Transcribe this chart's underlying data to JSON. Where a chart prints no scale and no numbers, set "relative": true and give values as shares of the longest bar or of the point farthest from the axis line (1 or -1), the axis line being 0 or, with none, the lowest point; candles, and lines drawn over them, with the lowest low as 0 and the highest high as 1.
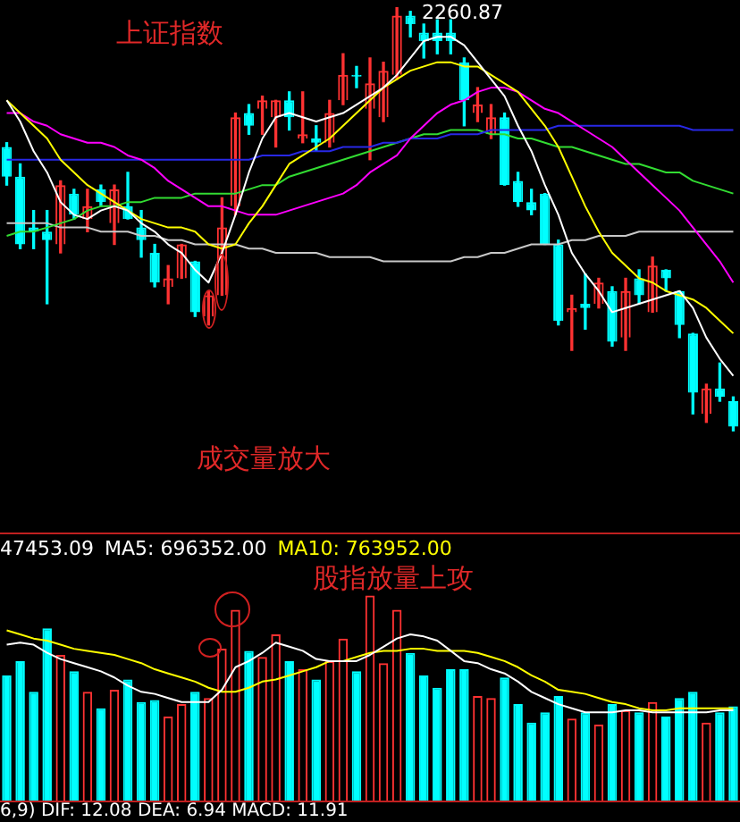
{
  "chart_data": [
    {
      "type": "candlestick",
      "relative": true,
      "categories": [
        null,
        null,
        null,
        null,
        null,
        null,
        null,
        null,
        null,
        null,
        null,
        null,
        null,
        null,
        null,
        null,
        null,
        null,
        null,
        null,
        null,
        null,
        null,
        null,
        null,
        null,
        null,
        null,
        null,
        null,
        null,
        null,
        null,
        null,
        null,
        null,
        null,
        null,
        null,
        null,
        null,
        null,
        null,
        null,
        null,
        null,
        null,
        null,
        null,
        null,
        null,
        null,
        null,
        null,
        null
      ],
      "ohlc": [
        [
          0.67,
          0.68,
          0.58,
          0.6
        ],
        [
          0.6,
          0.63,
          0.43,
          0.44
        ],
        [
          0.48,
          0.52,
          0.43,
          0.47
        ],
        [
          0.47,
          0.52,
          0.3,
          0.45
        ],
        [
          0.44,
          0.59,
          0.42,
          0.58
        ],
        [
          0.56,
          0.57,
          0.5,
          0.51
        ],
        [
          0.5,
          0.57,
          0.47,
          0.53
        ],
        [
          0.57,
          0.58,
          0.53,
          0.54
        ],
        [
          0.49,
          0.58,
          0.44,
          0.57
        ],
        [
          0.53,
          0.61,
          0.5,
          0.5
        ],
        [
          0.48,
          0.52,
          0.41,
          0.45
        ],
        [
          0.42,
          0.44,
          0.34,
          0.35
        ],
        [
          0.34,
          0.39,
          0.3,
          0.36
        ],
        [
          0.36,
          0.44,
          0.36,
          0.44
        ],
        [
          0.4,
          0.4,
          0.27,
          0.28
        ],
        [
          0.27,
          0.33,
          0.25,
          0.32
        ],
        [
          0.32,
          0.55,
          0.32,
          0.48
        ],
        [
          0.53,
          0.75,
          0.51,
          0.74
        ],
        [
          0.75,
          0.77,
          0.7,
          0.72
        ],
        [
          0.76,
          0.79,
          0.7,
          0.78
        ],
        [
          0.74,
          0.78,
          0.67,
          0.78
        ],
        [
          0.78,
          0.8,
          0.71,
          0.74
        ],
        [
          0.69,
          0.8,
          0.68,
          0.7
        ],
        [
          0.69,
          0.72,
          0.66,
          0.68
        ],
        [
          0.68,
          0.78,
          0.67,
          0.75
        ],
        [
          0.78,
          0.89,
          0.77,
          0.84
        ],
        [
          0.84,
          0.86,
          0.81,
          0.84
        ],
        [
          0.76,
          0.88,
          0.64,
          0.82
        ],
        [
          0.74,
          0.87,
          0.73,
          0.85
        ],
        [
          0.84,
          1,
          0.83,
          0.98
        ],
        [
          0.98,
          0.99,
          0.93,
          0.96
        ],
        [
          0.94,
          0.96,
          0.88,
          0.92
        ],
        [
          0.94,
          0.97,
          0.89,
          0.92
        ],
        [
          0.94,
          0.97,
          0.89,
          0.92
        ],
        [
          0.87,
          0.88,
          0.72,
          0.78
        ],
        [
          0.75,
          0.81,
          0.73,
          0.77
        ],
        [
          0.7,
          0.77,
          0.69,
          0.74
        ],
        [
          0.74,
          0.75,
          0.58,
          0.58
        ],
        [
          0.59,
          0.61,
          0.53,
          0.54
        ],
        [
          0.54,
          0.57,
          0.51,
          0.52
        ],
        [
          0.56,
          0.56,
          0.44,
          0.44
        ],
        [
          0.44,
          0.45,
          0.25,
          0.26
        ],
        [
          0.28,
          0.32,
          0.19,
          0.29
        ],
        [
          0.3,
          0.37,
          0.24,
          0.29
        ],
        [
          0.3,
          0.36,
          0.29,
          0.35
        ],
        [
          0.33,
          0.34,
          0.2,
          0.21
        ],
        [
          0.22,
          0.36,
          0.19,
          0.33
        ],
        [
          0.36,
          0.38,
          0.3,
          0.32
        ],
        [
          0.28,
          0.41,
          0.28,
          0.39
        ],
        [
          0.38,
          0.38,
          0.33,
          0.36
        ],
        [
          0.33,
          0.33,
          0.22,
          0.25
        ],
        [
          0.23,
          0.23,
          0.04,
          0.09
        ],
        [
          0.04,
          0.11,
          0.02,
          0.1
        ],
        [
          0.1,
          0.16,
          0.07,
          0.08
        ],
        [
          0.07,
          0.08,
          0,
          0.01
        ]
      ],
      "colors": [
        "#00ffff",
        "#00ffff",
        "#00ffff",
        "#00ffff",
        "#ff3232",
        "#00ffff",
        "#ff3232",
        "#00ffff",
        "#ff3232",
        "#00ffff",
        "#00ffff",
        "#00ffff",
        "#ff3232",
        "#ff3232",
        "#00ffff",
        "#ff3232",
        "#ff3232",
        "#ff3232",
        "#00ffff",
        "#ff3232",
        "#ff3232",
        "#00ffff",
        "#ff3232",
        "#00ffff",
        "#ff3232",
        "#ff3232",
        "#00ffff",
        "#ff3232",
        "#ff3232",
        "#ff3232",
        "#00ffff",
        "#00ffff",
        "#00ffff",
        "#00ffff",
        "#00ffff",
        "#ff3232",
        "#ff3232",
        "#00ffff",
        "#00ffff",
        "#00ffff",
        "#00ffff",
        "#00ffff",
        "#ff3232",
        "#00ffff",
        "#ff3232",
        "#00ffff",
        "#ff3232",
        "#00ffff",
        "#ff3232",
        "#00ffff",
        "#00ffff",
        "#00ffff",
        "#ff3232",
        "#00ffff",
        "#00ffff"
      ],
      "series": [
        {
          "type": "line",
          "color": "#ffffff",
          "values": [
            0.78,
            0.73,
            0.66,
            0.61,
            0.54,
            0.51,
            0.5,
            0.52,
            0.53,
            0.52,
            0.49,
            0.47,
            0.44,
            0.42,
            0.38,
            0.35,
            0.42,
            0.51,
            0.61,
            0.69,
            0.74,
            0.75,
            0.74,
            0.73,
            0.74,
            0.75,
            0.77,
            0.79,
            0.81,
            0.84,
            0.88,
            0.92,
            0.93,
            0.93,
            0.91,
            0.87,
            0.83,
            0.79,
            0.72,
            0.66,
            0.58,
            0.51,
            0.42,
            0.37,
            0.33,
            0.28,
            0.29,
            0.3,
            0.31,
            0.32,
            0.33,
            0.29,
            0.22,
            0.17,
            0.13
          ]
        },
        {
          "type": "line",
          "color": "#ffff00",
          "values": [
            0.78,
            0.75,
            0.72,
            0.69,
            0.64,
            0.61,
            0.58,
            0.56,
            0.54,
            0.52,
            0.5,
            0.49,
            0.48,
            0.48,
            0.47,
            0.44,
            0.43,
            0.44,
            0.49,
            0.53,
            0.58,
            0.63,
            0.65,
            0.67,
            0.69,
            0.72,
            0.75,
            0.78,
            0.81,
            0.83,
            0.85,
            0.86,
            0.87,
            0.87,
            0.86,
            0.86,
            0.84,
            0.82,
            0.8,
            0.76,
            0.72,
            0.67,
            0.6,
            0.53,
            0.47,
            0.42,
            0.39,
            0.36,
            0.35,
            0.33,
            0.32,
            0.31,
            0.29,
            0.26,
            0.23
          ]
        },
        {
          "type": "line",
          "color": "#ff00ff",
          "values": [
            0.75,
            0.75,
            0.73,
            0.72,
            0.7,
            0.69,
            0.68,
            0.68,
            0.67,
            0.65,
            0.64,
            0.62,
            0.59,
            0.57,
            0.55,
            0.53,
            0.53,
            0.52,
            0.51,
            0.51,
            0.51,
            0.52,
            0.53,
            0.54,
            0.55,
            0.56,
            0.58,
            0.61,
            0.63,
            0.65,
            0.69,
            0.72,
            0.75,
            0.77,
            0.78,
            0.8,
            0.81,
            0.81,
            0.8,
            0.78,
            0.76,
            0.75,
            0.73,
            0.71,
            0.69,
            0.67,
            0.64,
            0.61,
            0.58,
            0.55,
            0.52,
            0.48,
            0.44,
            0.4,
            0.35
          ]
        },
        {
          "type": "line",
          "color": "#2828e6",
          "values": [
            0.64,
            0.64,
            0.64,
            0.64,
            0.64,
            0.64,
            0.64,
            0.64,
            0.64,
            0.64,
            0.64,
            0.64,
            0.64,
            0.64,
            0.64,
            0.64,
            0.64,
            0.64,
            0.64,
            0.65,
            0.65,
            0.65,
            0.66,
            0.66,
            0.66,
            0.67,
            0.67,
            0.67,
            0.68,
            0.68,
            0.69,
            0.69,
            0.69,
            0.7,
            0.7,
            0.7,
            0.71,
            0.71,
            0.71,
            0.71,
            0.71,
            0.72,
            0.72,
            0.72,
            0.72,
            0.72,
            0.72,
            0.72,
            0.72,
            0.72,
            0.72,
            0.71,
            0.71,
            0.71,
            0.71
          ]
        },
        {
          "type": "line",
          "color": "#32dc32",
          "values": [
            0.46,
            0.47,
            0.47,
            0.48,
            0.49,
            0.5,
            0.52,
            0.53,
            0.53,
            0.54,
            0.54,
            0.55,
            0.55,
            0.55,
            0.56,
            0.56,
            0.56,
            0.56,
            0.57,
            0.58,
            0.58,
            0.6,
            0.61,
            0.62,
            0.63,
            0.64,
            0.65,
            0.66,
            0.67,
            0.68,
            0.69,
            0.7,
            0.7,
            0.71,
            0.71,
            0.71,
            0.7,
            0.7,
            0.69,
            0.69,
            0.68,
            0.67,
            0.67,
            0.66,
            0.65,
            0.64,
            0.63,
            0.63,
            0.62,
            0.61,
            0.61,
            0.59,
            0.58,
            0.57,
            0.56
          ]
        },
        {
          "type": "line",
          "color": "#c8c8c8",
          "values": [
            0.49,
            0.49,
            0.49,
            0.49,
            0.48,
            0.48,
            0.48,
            0.47,
            0.47,
            0.47,
            0.46,
            0.46,
            0.45,
            0.45,
            0.44,
            0.44,
            0.44,
            0.44,
            0.43,
            0.43,
            0.42,
            0.42,
            0.42,
            0.42,
            0.41,
            0.41,
            0.41,
            0.41,
            0.4,
            0.4,
            0.4,
            0.4,
            0.4,
            0.4,
            0.41,
            0.41,
            0.42,
            0.42,
            0.43,
            0.44,
            0.44,
            0.44,
            0.45,
            0.45,
            0.46,
            0.46,
            0.46,
            0.47,
            0.47,
            0.47,
            0.47,
            0.47,
            0.47,
            0.47,
            0.47
          ]
        }
      ],
      "annotations": [
        "上证指数",
        "2260.87",
        "成交量放大"
      ]
    },
    {
      "type": "bar",
      "relative": true,
      "legend": "top left",
      "categories": [
        null,
        null,
        null,
        null,
        null,
        null,
        null,
        null,
        null,
        null,
        null,
        null,
        null,
        null,
        null,
        null,
        null,
        null,
        null,
        null,
        null,
        null,
        null,
        null,
        null,
        null,
        null,
        null,
        null,
        null,
        null,
        null,
        null,
        null,
        null,
        null,
        null,
        null,
        null,
        null,
        null,
        null,
        null,
        null,
        null,
        null,
        null,
        null,
        null,
        null,
        null,
        null,
        null,
        null,
        null
      ],
      "values": [
        0.61,
        0.68,
        0.53,
        0.84,
        0.71,
        0.63,
        0.53,
        0.45,
        0.54,
        0.59,
        0.48,
        0.49,
        0.41,
        0.47,
        0.53,
        0.5,
        0.74,
        0.93,
        0.73,
        0.7,
        0.81,
        0.68,
        0.64,
        0.59,
        0.68,
        0.79,
        0.63,
        1,
        0.67,
        0.93,
        0.72,
        0.61,
        0.55,
        0.64,
        0.64,
        0.51,
        0.5,
        0.6,
        0.47,
        0.38,
        0.43,
        0.51,
        0.4,
        0.43,
        0.37,
        0.47,
        0.44,
        0.43,
        0.48,
        0.41,
        0.5,
        0.53,
        0.38,
        0.43,
        0.46
      ],
      "colors": [
        "#00ffff",
        "#00ffff",
        "#00ffff",
        "#00ffff",
        "#ff3232",
        "#00ffff",
        "#ff3232",
        "#00ffff",
        "#ff3232",
        "#00ffff",
        "#00ffff",
        "#00ffff",
        "#ff3232",
        "#ff3232",
        "#00ffff",
        "#ff3232",
        "#ff3232",
        "#ff3232",
        "#00ffff",
        "#ff3232",
        "#ff3232",
        "#00ffff",
        "#ff3232",
        "#00ffff",
        "#ff3232",
        "#ff3232",
        "#00ffff",
        "#ff3232",
        "#ff3232",
        "#ff3232",
        "#00ffff",
        "#00ffff",
        "#00ffff",
        "#00ffff",
        "#00ffff",
        "#ff3232",
        "#ff3232",
        "#00ffff",
        "#00ffff",
        "#00ffff",
        "#00ffff",
        "#00ffff",
        "#ff3232",
        "#00ffff",
        "#ff3232",
        "#00ffff",
        "#ff3232",
        "#00ffff",
        "#ff3232",
        "#00ffff",
        "#00ffff",
        "#00ffff",
        "#ff3232",
        "#00ffff",
        "#00ffff"
      ],
      "series": [
        {
          "type": "line",
          "name": "MA5: 696352.00",
          "color": "#ffffff",
          "values": [
            0.76,
            0.77,
            0.76,
            0.72,
            0.69,
            0.67,
            0.65,
            0.63,
            0.6,
            0.56,
            0.53,
            0.52,
            0.5,
            0.48,
            0.48,
            0.48,
            0.54,
            0.65,
            0.68,
            0.72,
            0.77,
            0.75,
            0.73,
            0.69,
            0.68,
            0.68,
            0.68,
            0.71,
            0.75,
            0.79,
            0.81,
            0.8,
            0.78,
            0.73,
            0.68,
            0.67,
            0.64,
            0.62,
            0.58,
            0.53,
            0.5,
            0.47,
            0.45,
            0.43,
            0.43,
            0.43,
            0.44,
            0.44,
            0.43,
            0.43,
            0.43,
            0.43,
            0.43,
            0.44,
            0.44
          ]
        },
        {
          "type": "line",
          "name": "MA10: 763952.00",
          "color": "#ffff00",
          "values": [
            0.83,
            0.81,
            0.79,
            0.78,
            0.76,
            0.74,
            0.73,
            0.72,
            0.71,
            0.69,
            0.67,
            0.64,
            0.62,
            0.6,
            0.58,
            0.55,
            0.53,
            0.53,
            0.55,
            0.58,
            0.59,
            0.61,
            0.63,
            0.65,
            0.68,
            0.68,
            0.7,
            0.72,
            0.73,
            0.73,
            0.74,
            0.74,
            0.73,
            0.73,
            0.73,
            0.72,
            0.7,
            0.68,
            0.65,
            0.61,
            0.58,
            0.54,
            0.53,
            0.52,
            0.5,
            0.48,
            0.47,
            0.45,
            0.44,
            0.44,
            0.45,
            0.45,
            0.45,
            0.45,
            0.45
          ]
        }
      ],
      "annotations": [
        "47453.09",
        "股指放量上攻",
        "6,9) DIF: 12.08 DEA: 6.94 MACD: 11.91"
      ]
    }
  ]
}
